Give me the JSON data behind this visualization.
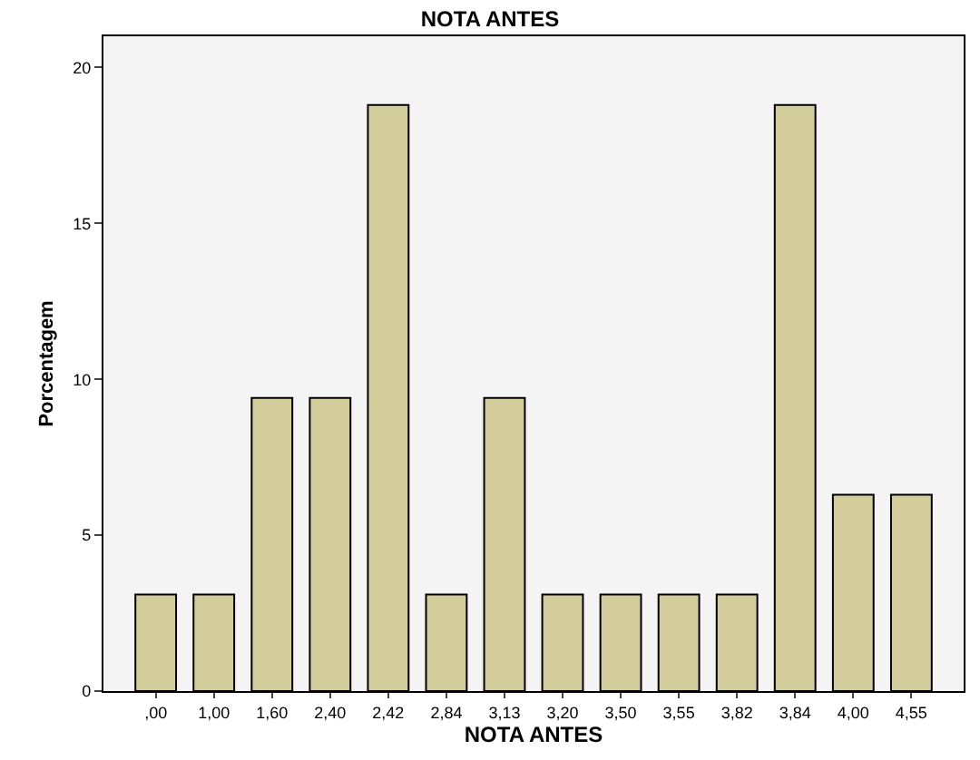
{
  "chart_data": {
    "type": "bar",
    "title": "NOTA ANTES",
    "xlabel": "NOTA ANTES",
    "ylabel": "Porcentagem",
    "categories": [
      ",00",
      "1,00",
      "1,60",
      "2,40",
      "2,42",
      "2,84",
      "3,13",
      "3,20",
      "3,50",
      "3,55",
      "3,82",
      "3,84",
      "4,00",
      "4,55"
    ],
    "values": [
      3.1,
      3.1,
      9.4,
      9.4,
      18.8,
      3.1,
      9.4,
      3.1,
      3.1,
      3.1,
      3.1,
      18.8,
      6.3,
      6.3
    ],
    "color": "#d3cd9b",
    "ylim": [
      0,
      21
    ],
    "yticks": [
      0,
      5,
      10,
      15,
      20
    ],
    "grid": false
  }
}
